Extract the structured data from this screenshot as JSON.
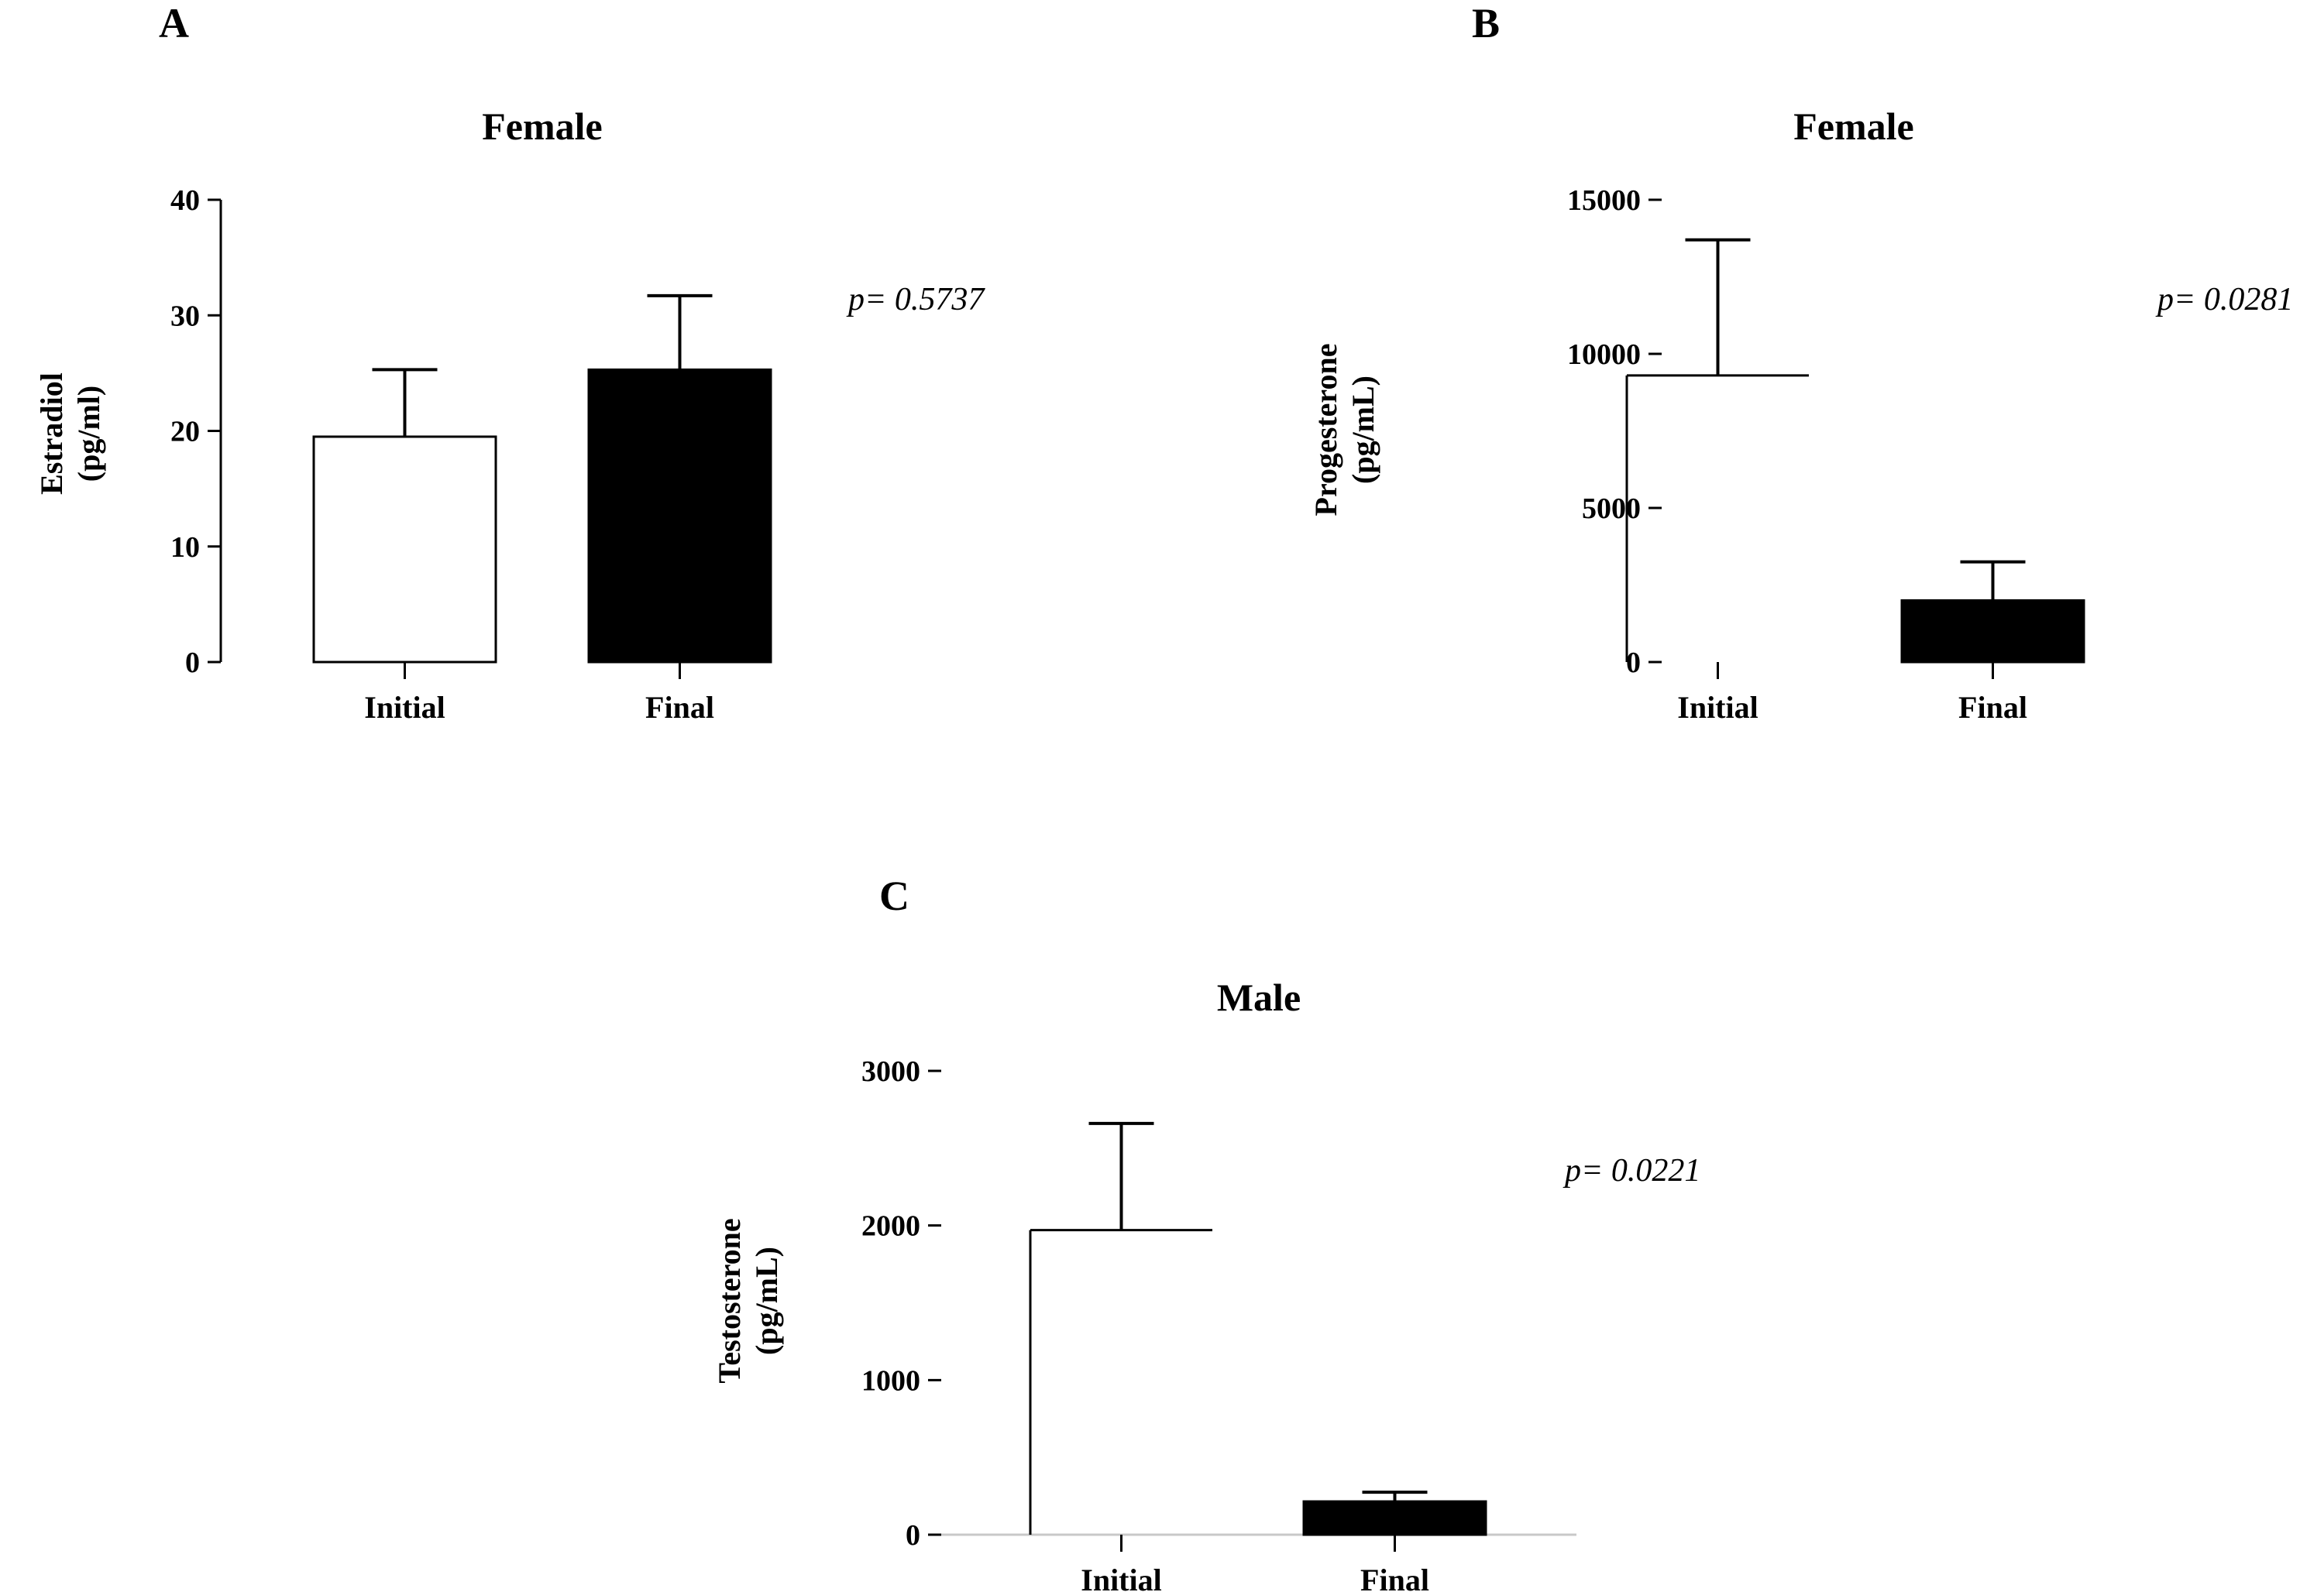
{
  "chart_data": [
    {
      "id": "A",
      "type": "bar",
      "panel_label": "A",
      "title": "Female",
      "ylabel_lines": [
        "Estradiol",
        "(pg/ml)"
      ],
      "categories": [
        "Initial",
        "Final"
      ],
      "values": [
        19.5,
        25.3
      ],
      "errors": [
        5.8,
        6.4
      ],
      "fills": [
        "#ffffff",
        "#000000"
      ],
      "ylim": [
        0,
        40
      ],
      "yticks": [
        0,
        10,
        20,
        30,
        40
      ],
      "ytick_labels": [
        "0",
        "10",
        "20",
        "30",
        "40"
      ],
      "annotation": "p= 0.5737",
      "grid": false
    },
    {
      "id": "B",
      "type": "bar",
      "panel_label": "B",
      "title": "Female",
      "ylabel_lines": [
        "Progesterone",
        "(pg/mL)"
      ],
      "categories": [
        "Initial",
        "Final"
      ],
      "values": [
        9300,
        2000
      ],
      "errors": [
        4400,
        1250
      ],
      "fills": [
        "#ffffff",
        "#000000"
      ],
      "ylim": [
        0,
        15000
      ],
      "yticks": [
        0,
        5000,
        10000,
        15000
      ],
      "ytick_labels": [
        "0",
        "5000",
        "10000",
        "15000"
      ],
      "annotation": "p= 0.0281",
      "grid": false
    },
    {
      "id": "C",
      "type": "bar",
      "panel_label": "C",
      "title": "Male",
      "ylabel_lines": [
        "Testosterone",
        "(pg/mL)"
      ],
      "categories": [
        "Initial",
        "Final"
      ],
      "values": [
        1970,
        215
      ],
      "errors": [
        690,
        60
      ],
      "fills": [
        "#ffffff",
        "#000000"
      ],
      "ylim": [
        0,
        3000
      ],
      "yticks": [
        0,
        1000,
        2000,
        3000
      ],
      "ytick_labels": [
        "0",
        "1000",
        "2000",
        "3000"
      ],
      "annotation": "p= 0.0221",
      "grid": false
    }
  ]
}
